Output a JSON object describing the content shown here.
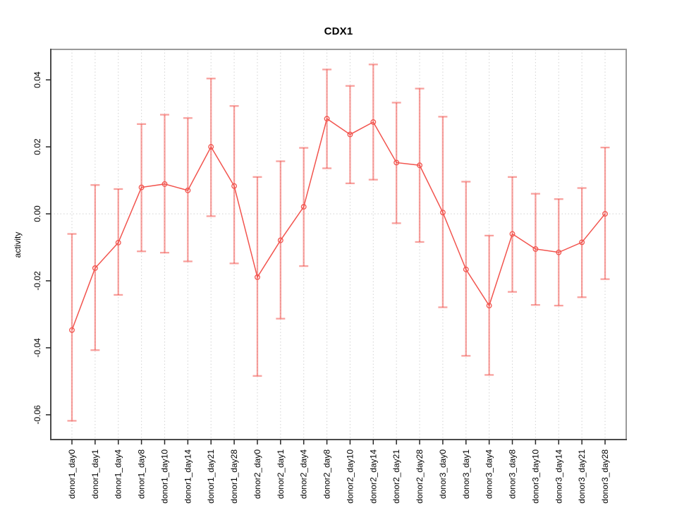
{
  "header": {
    "title": "CDX1"
  },
  "chart_data": {
    "type": "line",
    "title": "CDX1",
    "xlabel": "",
    "ylabel": "activity",
    "legend": "none",
    "grid": "vertical dotted gridline per category; dotted horizontal line at y=0",
    "error_bars": true,
    "marker": "open-circle",
    "ylim": [
      -0.0674,
      0.0491
    ],
    "ytick_values": [
      0.04,
      0.02,
      0.0,
      -0.02,
      -0.04,
      -0.06
    ],
    "ytick_labels": [
      "0.04",
      "0.02",
      "0.00",
      "-0.02",
      "-0.04",
      "-0.06"
    ],
    "categories": [
      "donor1_day0",
      "donor1_day1",
      "donor1_day4",
      "donor1_day8",
      "donor1_day10",
      "donor1_day14",
      "donor1_day21",
      "donor1_day28",
      "donor2_day0",
      "donor2_day1",
      "donor2_day4",
      "donor2_day8",
      "donor2_day10",
      "donor2_day14",
      "donor2_day21",
      "donor2_day28",
      "donor3_day0",
      "donor3_day1",
      "donor3_day4",
      "donor3_day8",
      "donor3_day10",
      "donor3_day14",
      "donor3_day21",
      "donor3_day28"
    ],
    "series": [
      {
        "name": "activity",
        "values": [
          -0.0347,
          -0.0162,
          -0.0086,
          0.0079,
          0.0089,
          0.007,
          0.02,
          0.0083,
          -0.0189,
          -0.0079,
          0.0021,
          0.0284,
          0.0237,
          0.0274,
          0.0153,
          0.0145,
          0.0004,
          -0.0166,
          -0.0274,
          -0.006,
          -0.0105,
          -0.0115,
          -0.0085,
          0.0
        ],
        "error_low": [
          -0.0618,
          -0.0407,
          -0.0242,
          -0.0112,
          -0.0116,
          -0.0142,
          -0.0007,
          -0.0148,
          -0.0484,
          -0.0313,
          -0.0156,
          0.0136,
          0.0091,
          0.0102,
          -0.0028,
          -0.0084,
          -0.0279,
          -0.0424,
          -0.0481,
          -0.0233,
          -0.0272,
          -0.0274,
          -0.0249,
          -0.0195
        ],
        "error_high": [
          -0.006,
          0.0086,
          0.0074,
          0.0268,
          0.0296,
          0.0286,
          0.0404,
          0.0322,
          0.011,
          0.0157,
          0.0197,
          0.0431,
          0.0382,
          0.0446,
          0.0332,
          0.0374,
          0.029,
          0.0096,
          -0.0065,
          0.011,
          0.006,
          0.0044,
          0.0077,
          0.0198
        ]
      }
    ],
    "colors": {
      "series": "#f2544e",
      "error_bar": "#f2544e",
      "error_bar_opacity": 0.55,
      "grid": "#d6d6d6",
      "box_border": "#9a9a9a",
      "axis": "#4a4a4a",
      "tick": "#262626",
      "text": "#000000"
    }
  }
}
